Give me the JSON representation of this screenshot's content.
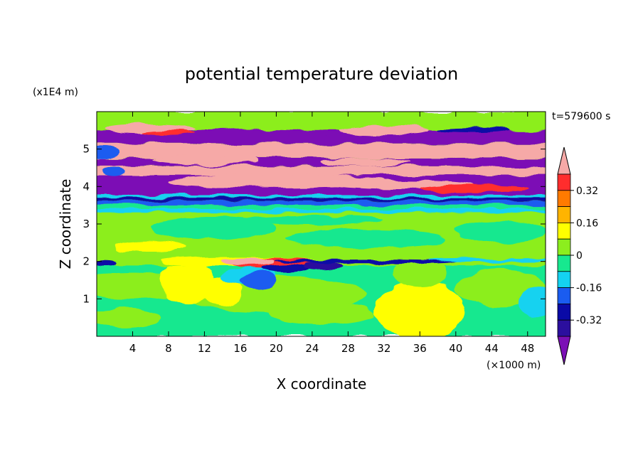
{
  "chart_data": {
    "type": "heatmap",
    "title": "potential temperature deviation",
    "xlabel": "X coordinate",
    "ylabel": "Z coordinate",
    "x_unit": "(×1000 m)",
    "y_unit": "(x1E4 m)",
    "time_label": "t=579600 s",
    "xlim": [
      0,
      50
    ],
    "ylim": [
      0,
      6
    ],
    "x_ticks": [
      4,
      8,
      12,
      16,
      20,
      24,
      28,
      32,
      36,
      40,
      44,
      48
    ],
    "y_ticks": [
      1,
      2,
      3,
      4,
      5
    ],
    "colorbar": {
      "levels": [
        -0.48,
        -0.4,
        -0.32,
        -0.24,
        -0.16,
        -0.08,
        0,
        0.08,
        0.16,
        0.24,
        0.32,
        0.4,
        0.48
      ],
      "labeled_ticks": [
        "0.32",
        "0.16",
        "0",
        "-0.16",
        "-0.32"
      ],
      "extend": "both",
      "colors": [
        "#7b0fb5",
        "#2b0f9e",
        "#0a0aa6",
        "#1a5cf0",
        "#14d2f0",
        "#17e88f",
        "#8cee1e",
        "#ffff00",
        "#ffb400",
        "#ff7a00",
        "#ff2d2d",
        "#f6a9a7"
      ]
    },
    "bands": [
      {
        "z": [
          0.0,
          0.35
        ],
        "value": "0"
      },
      {
        "z": [
          0.35,
          1.9
        ],
        "value": "0 to 0.08, with 0.08-0.16 plume near x=36"
      },
      {
        "z": [
          1.9,
          2.15
        ],
        "value": "-0.48 to 0.40 (strong gradient)"
      },
      {
        "z": [
          2.15,
          3.3
        ],
        "value": "0 to 0.08"
      },
      {
        "z": [
          3.3,
          3.75
        ],
        "value": "-0.48 to -0.08"
      },
      {
        "z": [
          3.75,
          4.3
        ],
        "value": "below -0.40"
      },
      {
        "z": [
          4.3,
          4.55
        ],
        "value": "above 0.40"
      },
      {
        "z": [
          4.55,
          4.75
        ],
        "value": "below -0.40"
      },
      {
        "z": [
          4.75,
          5.15
        ],
        "value": "above 0.40"
      },
      {
        "z": [
          5.15,
          5.5
        ],
        "value": "below -0.40"
      },
      {
        "z": [
          5.5,
          6.0
        ],
        "value": "0 to 0.08"
      }
    ]
  }
}
